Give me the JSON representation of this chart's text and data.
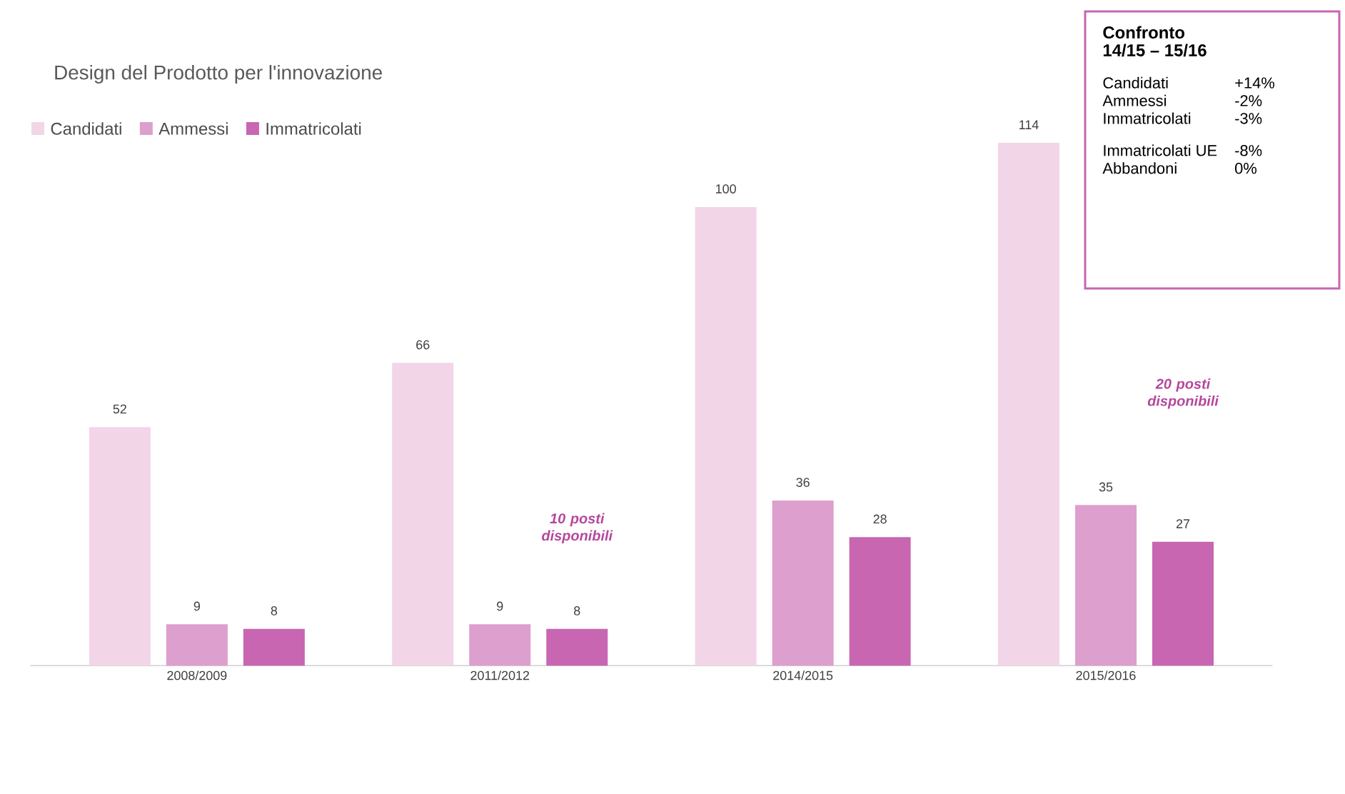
{
  "chart_data": [
    {
      "type": "bar",
      "title": "Design del Prodotto per l'innovazione",
      "categories": [
        "2008/2009",
        "2011/2012",
        "2014/2015",
        "2015/2016"
      ],
      "series": [
        {
          "name": "Candidati",
          "color": "#f3d5e8",
          "values": [
            52,
            66,
            100,
            114
          ]
        },
        {
          "name": "Ammessi",
          "color": "#dd9fcd",
          "values": [
            9,
            9,
            36,
            35
          ]
        },
        {
          "name": "Immatricolati",
          "color": "#c866b2",
          "values": [
            8,
            8,
            28,
            27
          ]
        }
      ],
      "data_labels": true,
      "legend": "top left",
      "annotations": [
        "10 posti disponibili",
        "20 posti disponibili"
      ]
    },
    {
      "type": "other",
      "title": "Confronto",
      "subtitle": "14/15 – 15/16",
      "annotations": [
        "Candidati",
        "+14%",
        "Ammessi",
        "-2%",
        "Immatricolati",
        "-3%",
        "Immatricolati UE",
        "-8%",
        "Abbandoni",
        "0%"
      ]
    }
  ]
}
